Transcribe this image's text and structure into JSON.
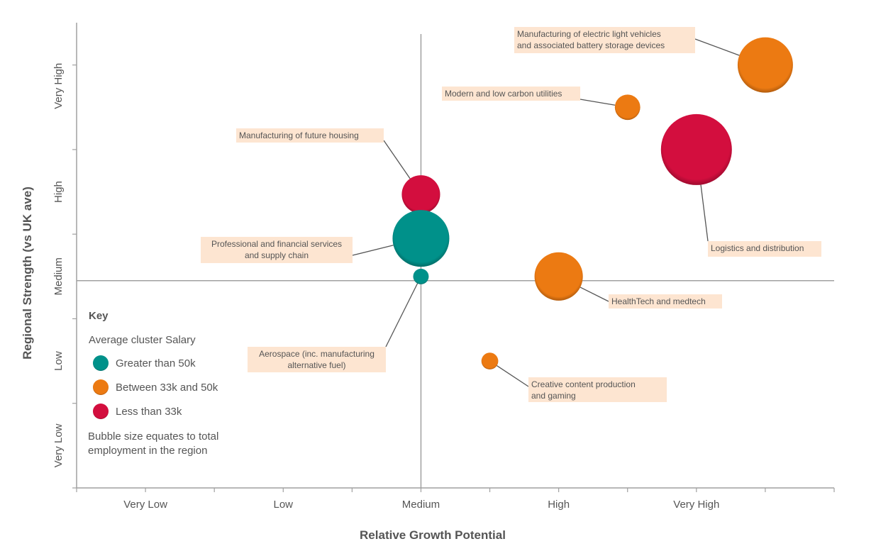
{
  "chart_data": {
    "type": "scatter",
    "subtype": "bubble",
    "xlabel": "Relative Growth Potential",
    "ylabel": "Regional Strength (vs UK ave)",
    "x_tick_labels": [
      "Very Low",
      "Low",
      "Medium",
      "High",
      "Very High"
    ],
    "y_tick_labels": [
      "Very Low",
      "Low",
      "Medium",
      "High",
      "Very High"
    ],
    "xlim": [
      0.5,
      6.0
    ],
    "ylim": [
      0.5,
      6.0
    ],
    "reference_lines": {
      "x": 3.0,
      "y": 2.95
    },
    "grid": false,
    "legend": {
      "placement": "bottom-left",
      "title": "Key",
      "subtitle": "Average cluster Salary",
      "items": [
        {
          "label": "Greater than 50k",
          "color": "#00918a"
        },
        {
          "label": "Between 33k and 50k",
          "color": "#ec7a12"
        },
        {
          "label": "Less than 33k",
          "color": "#d30e3e"
        }
      ],
      "note": "Bubble size equates to total employment in the region"
    },
    "points": [
      {
        "label": [
          "Manufacturing of electric light vehicles",
          "and associated battery storage devices"
        ],
        "x": 5.5,
        "y": 5.5,
        "size": 15.2,
        "salary_band": 1
      },
      {
        "label": [
          "Modern and low carbon utilities"
        ],
        "x": 4.5,
        "y": 5.0,
        "size": 3.2,
        "salary_band": 1
      },
      {
        "label": [
          "Logistics and distribution"
        ],
        "x": 5.0,
        "y": 4.5,
        "size": 25.0,
        "salary_band": 2
      },
      {
        "label": [
          "Manufacturing of future housing"
        ],
        "x": 3.0,
        "y": 3.97,
        "size": 7.3,
        "salary_band": 2
      },
      {
        "label": [
          "Professional and financial services",
          "and supply chain"
        ],
        "x": 3.0,
        "y": 3.45,
        "size": 16.0,
        "salary_band": 0
      },
      {
        "label": [
          "Aerospace (inc. manufacturing",
          "alternative fuel)"
        ],
        "x": 3.0,
        "y": 3.0,
        "size": 1.2,
        "salary_band": 0
      },
      {
        "label": [
          "HealthTech and medtech"
        ],
        "x": 4.0,
        "y": 3.0,
        "size": 11.6,
        "salary_band": 1
      },
      {
        "label": [
          "Creative content production",
          "and gaming"
        ],
        "x": 3.5,
        "y": 2.0,
        "size": 1.4,
        "salary_band": 1
      }
    ],
    "label_background": "#fde5d1",
    "axis_color": "#a0a0a0"
  }
}
